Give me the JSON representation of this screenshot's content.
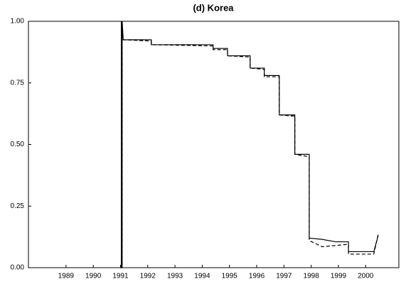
{
  "chart_data": {
    "type": "line",
    "title": "(d) Korea",
    "x": [
      1991.53,
      1991.53,
      1991.56,
      1991.56,
      1991.6,
      1992.63,
      1992.63,
      1994.9,
      1994.9,
      1995.43,
      1995.43,
      1996.26,
      1996.26,
      1996.78,
      1996.78,
      1997.33,
      1997.33,
      1997.9,
      1997.9,
      1998.43,
      1998.43,
      1998.9,
      1999.4,
      1999.87,
      1999.87,
      2000.8,
      2000.96
    ],
    "series": [
      {
        "color": "#000000",
        "dash": false,
        "values": [
          1.0,
          0.0,
          0.0,
          1.0,
          0.925,
          0.925,
          0.905,
          0.905,
          0.89,
          0.89,
          0.86,
          0.86,
          0.81,
          0.81,
          0.78,
          0.78,
          0.62,
          0.62,
          0.46,
          0.46,
          0.12,
          0.115,
          0.105,
          0.105,
          0.065,
          0.065,
          0.13
        ]
      },
      {
        "color": "#000000",
        "dash": true,
        "values": [
          1.0,
          0.0,
          0.0,
          1.0,
          0.925,
          0.92,
          0.905,
          0.9,
          0.885,
          0.885,
          0.86,
          0.855,
          0.81,
          0.805,
          0.775,
          0.775,
          0.62,
          0.615,
          0.46,
          0.45,
          0.11,
          0.085,
          0.09,
          0.095,
          0.055,
          0.055,
          0.135
        ]
      }
    ],
    "xlim": [
      1988.12,
      2001.72
    ],
    "xticks": [
      {
        "value": 1989.5,
        "label": "1989"
      },
      {
        "value": 1990.5,
        "label": "1990"
      },
      {
        "value": 1991.5,
        "label": "1991"
      },
      {
        "value": 1992.5,
        "label": "1992"
      },
      {
        "value": 1993.5,
        "label": "1993"
      },
      {
        "value": 1994.5,
        "label": "1994"
      },
      {
        "value": 1995.5,
        "label": "1995"
      },
      {
        "value": 1996.5,
        "label": "1996"
      },
      {
        "value": 1997.5,
        "label": "1997"
      },
      {
        "value": 1998.5,
        "label": "1998"
      },
      {
        "value": 1999.5,
        "label": "1999"
      },
      {
        "value": 2000.5,
        "label": "2000"
      }
    ],
    "ylim": [
      0,
      1
    ],
    "yticks": [
      {
        "value": 0,
        "label": "0.00"
      },
      {
        "value": 0.25,
        "label": "0.25"
      },
      {
        "value": 0.5,
        "label": "0.50"
      },
      {
        "value": 0.75,
        "label": "0.75"
      },
      {
        "value": 1,
        "label": "1.00"
      }
    ],
    "grid": false
  }
}
